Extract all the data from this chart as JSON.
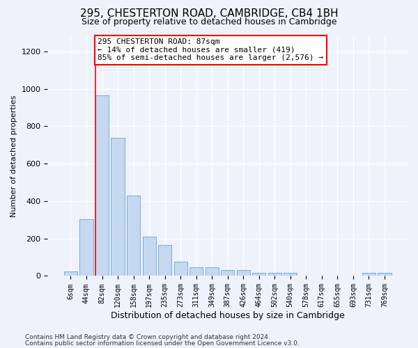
{
  "title1": "295, CHESTERTON ROAD, CAMBRIDGE, CB4 1BH",
  "title2": "Size of property relative to detached houses in Cambridge",
  "xlabel": "Distribution of detached houses by size in Cambridge",
  "ylabel": "Number of detached properties",
  "categories": [
    "6sqm",
    "44sqm",
    "82sqm",
    "120sqm",
    "158sqm",
    "197sqm",
    "235sqm",
    "273sqm",
    "311sqm",
    "349sqm",
    "387sqm",
    "426sqm",
    "464sqm",
    "502sqm",
    "540sqm",
    "578sqm",
    "617sqm",
    "655sqm",
    "693sqm",
    "731sqm",
    "769sqm"
  ],
  "values": [
    25,
    305,
    965,
    740,
    430,
    210,
    165,
    75,
    48,
    48,
    30,
    30,
    18,
    15,
    15,
    0,
    0,
    0,
    0,
    15,
    15
  ],
  "bar_color": "#c5d8f0",
  "bar_edge_color": "#7aadd4",
  "vline_bar_index": 2,
  "annotation_line1": "295 CHESTERTON ROAD: 87sqm",
  "annotation_line2": "← 14% of detached houses are smaller (419)",
  "annotation_line3": "85% of semi-detached houses are larger (2,576) →",
  "annotation_box_facecolor": "white",
  "annotation_box_edgecolor": "red",
  "ylim": [
    0,
    1280
  ],
  "yticks": [
    0,
    200,
    400,
    600,
    800,
    1000,
    1200
  ],
  "footer1": "Contains HM Land Registry data © Crown copyright and database right 2024.",
  "footer2": "Contains public sector information licensed under the Open Government Licence v3.0.",
  "background_color": "#eef2fb",
  "grid_color": "#ffffff",
  "title1_fontsize": 11,
  "title2_fontsize": 9,
  "ylabel_fontsize": 8,
  "xlabel_fontsize": 9,
  "annot_fontsize": 8,
  "tick_fontsize": 7,
  "footer_fontsize": 6.5
}
